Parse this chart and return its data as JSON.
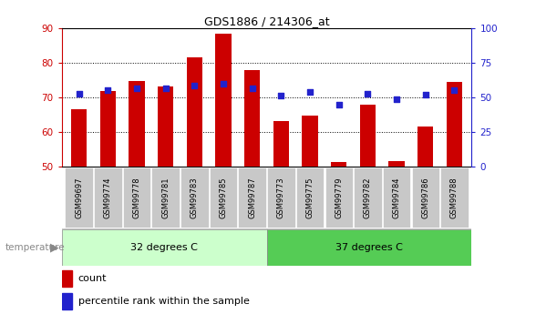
{
  "title": "GDS1886 / 214306_at",
  "samples": [
    "GSM99697",
    "GSM99774",
    "GSM99778",
    "GSM99781",
    "GSM99783",
    "GSM99785",
    "GSM99787",
    "GSM99773",
    "GSM99775",
    "GSM99779",
    "GSM99782",
    "GSM99784",
    "GSM99786",
    "GSM99788"
  ],
  "counts": [
    66.5,
    71.8,
    74.8,
    73.2,
    81.5,
    88.5,
    77.8,
    63.2,
    64.8,
    51.2,
    67.8,
    51.5,
    61.5,
    74.5
  ],
  "percentiles_pct": [
    71.0,
    72.0,
    72.5,
    72.5,
    73.5,
    74.0,
    72.5,
    70.5,
    71.5,
    68.0,
    71.0,
    69.5,
    70.8,
    72.0
  ],
  "group1_label": "32 degrees C",
  "group2_label": "37 degrees C",
  "group1_count": 7,
  "group2_count": 7,
  "y_min": 50,
  "y_max": 90,
  "y_ticks": [
    50,
    60,
    70,
    80,
    90
  ],
  "y2_ticks": [
    0,
    25,
    50,
    75,
    100
  ],
  "bar_color": "#cc0000",
  "dot_color": "#2222cc",
  "group1_color": "#ccffcc",
  "group2_color": "#55cc55",
  "left_axis_color": "#cc0000",
  "right_axis_color": "#2222cc",
  "tick_bg": "#c8c8c8",
  "temperature_label": "temperature",
  "legend_count": "count",
  "legend_percentile": "percentile rank within the sample"
}
